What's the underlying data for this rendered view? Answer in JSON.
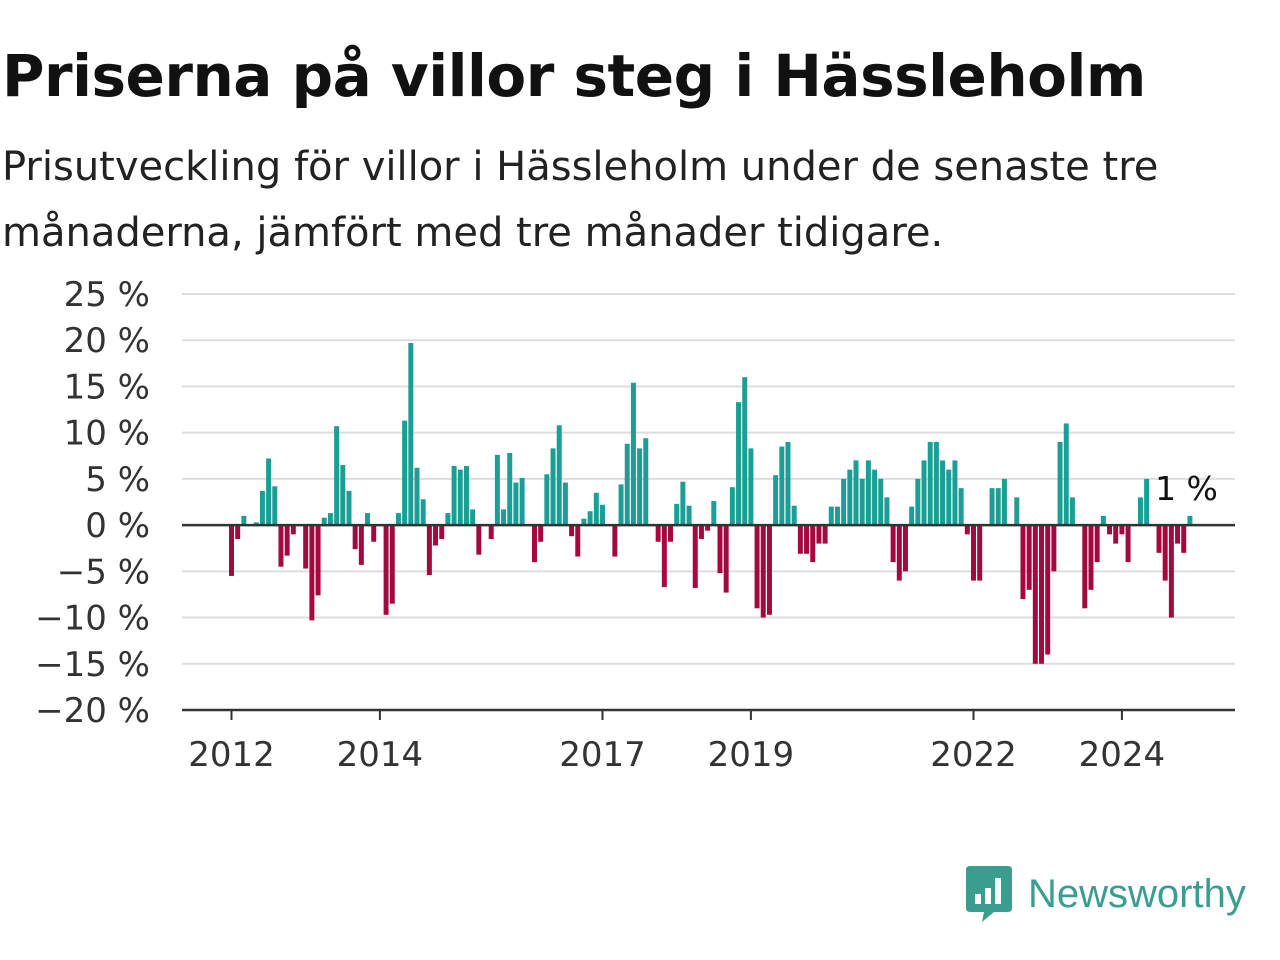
{
  "header": {
    "title": "Priserna på villor steg i Hässleholm",
    "subtitle": "Prisutveckling för villor i Hässleholm under de senaste tre månaderna, jämfört med tre månader tidigare."
  },
  "brand": {
    "name": "Newsworthy",
    "icon": "newsworthy-logo-icon",
    "color": "#3a9e8f"
  },
  "chart_data": {
    "type": "bar",
    "title": "Priserna på villor steg i Hässleholm",
    "subtitle": "Prisutveckling för villor i Hässleholm under de senaste tre månaderna, jämfört med tre månader tidigare.",
    "unit": "%",
    "ylim": [
      -20,
      25
    ],
    "yticks": [
      25,
      20,
      15,
      10,
      5,
      0,
      -5,
      -10,
      -15,
      -20
    ],
    "ytick_labels": [
      "25 %",
      "20 %",
      "15 %",
      "10 %",
      "5 %",
      "0 %",
      "−5 %",
      "−10 %",
      "−15 %",
      "−20 %"
    ],
    "xticks": [
      "2012",
      "2014",
      "2017",
      "2019",
      "2022",
      "2024"
    ],
    "grid": true,
    "colors": {
      "positive": "#1a9e96",
      "negative": "#a3093f",
      "grid": "#dddddd",
      "axis": "#333333"
    },
    "annotation": "1 %",
    "start": "2012-01",
    "frequency": "monthly",
    "values": [
      -5.5,
      -1.5,
      1.0,
      0,
      0.3,
      3.7,
      7.2,
      4.2,
      -4.5,
      -3.3,
      -1.0,
      0,
      -4.7,
      -10.3,
      -7.6,
      0.8,
      1.3,
      10.7,
      6.5,
      3.7,
      -2.6,
      -4.3,
      1.3,
      -1.8,
      0,
      -9.7,
      -8.5,
      1.3,
      11.3,
      19.7,
      6.2,
      2.8,
      -5.4,
      -2.2,
      -1.5,
      1.3,
      6.4,
      6.0,
      6.4,
      1.7,
      -3.2,
      0,
      -1.5,
      7.6,
      1.7,
      7.8,
      4.6,
      5.1,
      0,
      -4.0,
      -1.8,
      5.5,
      8.3,
      10.8,
      4.6,
      -1.2,
      -3.4,
      0.7,
      1.5,
      3.5,
      2.2,
      0,
      -3.4,
      4.4,
      8.8,
      15.4,
      8.3,
      9.4,
      0,
      -1.8,
      -6.7,
      -1.8,
      2.3,
      4.7,
      2.1,
      -6.8,
      -1.5,
      -0.6,
      2.6,
      -5.2,
      -7.3,
      4.1,
      13.3,
      16.0,
      8.3,
      -9.0,
      -10.0,
      -9.7,
      5.4,
      8.5,
      9.0,
      2.1,
      -3.1,
      -3.1,
      -4.0,
      -2.0,
      -2.0,
      2.0,
      2.0,
      5.0,
      6.0,
      7.0,
      5.0,
      7.0,
      6.0,
      5.0,
      3.0,
      -4.0,
      -6.0,
      -5.0,
      2.0,
      5.0,
      7.0,
      9.0,
      9.0,
      7.0,
      6.0,
      7.0,
      4.0,
      -1.0,
      -6.0,
      -6.0,
      0,
      4.0,
      4.0,
      5.0,
      0,
      3.0,
      -8.0,
      -7.0,
      -15.0,
      -15.0,
      -14.0,
      -5.0,
      9.0,
      11.0,
      3.0,
      0,
      -9.0,
      -7.0,
      -4.0,
      1.0,
      -1.0,
      -2.0,
      -1.0,
      -4.0,
      0,
      3.0,
      5.0,
      0,
      -3.0,
      -6.0,
      -10.0,
      -2.0,
      -3.0,
      1.0
    ]
  }
}
